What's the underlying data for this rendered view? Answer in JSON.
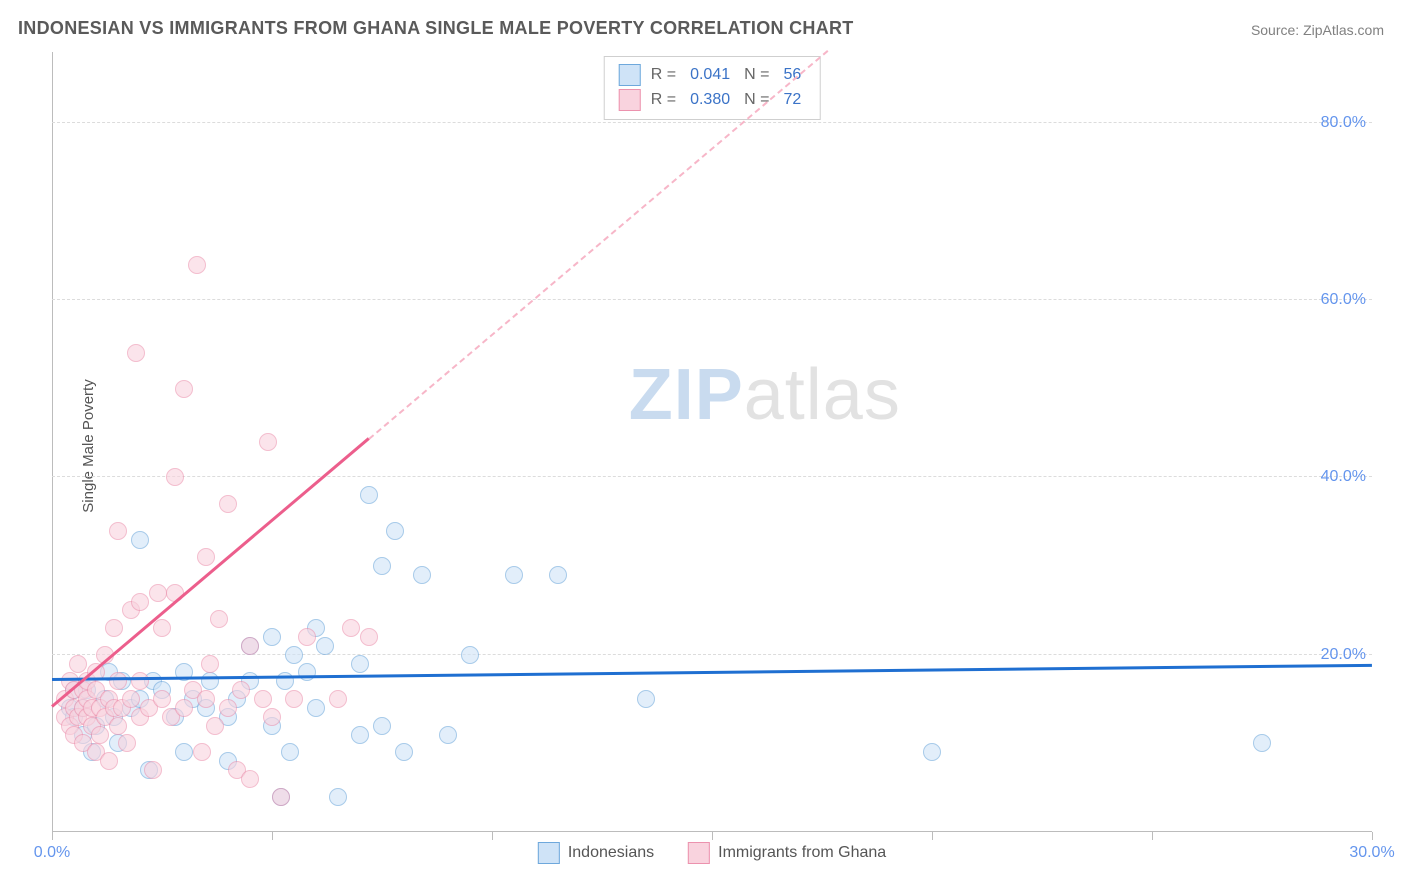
{
  "title": "INDONESIAN VS IMMIGRANTS FROM GHANA SINGLE MALE POVERTY CORRELATION CHART",
  "source": "Source: ZipAtlas.com",
  "ylabel": "Single Male Poverty",
  "watermark": {
    "zip": "ZIP",
    "atlas": "atlas"
  },
  "chart": {
    "type": "scatter",
    "xlim": [
      0,
      30
    ],
    "ylim": [
      0,
      88
    ],
    "xticks": [
      0,
      5,
      10,
      15,
      20,
      25,
      30
    ],
    "xlabels": {
      "0": "0.0%",
      "30": "30.0%"
    },
    "yticks": [
      20,
      40,
      60,
      80
    ],
    "background_color": "#ffffff",
    "grid_color": "#dcdcdc",
    "axis_color": "#bcbcbc",
    "tick_label_color": "#6495ed",
    "marker_radius": 9,
    "marker_stroke": 1.5,
    "series": [
      {
        "name": "Indonesians",
        "fill": "#cfe3f7",
        "stroke": "#6ea8dc",
        "fill_opacity": 0.6,
        "R": "0.041",
        "N": "56",
        "trend": {
          "y_at_x0": 17.0,
          "y_at_x30": 18.6,
          "color": "#1f6fd1"
        },
        "points": [
          [
            0.4,
            14
          ],
          [
            0.5,
            13
          ],
          [
            0.5,
            16
          ],
          [
            0.7,
            11
          ],
          [
            0.7,
            14
          ],
          [
            0.8,
            16
          ],
          [
            0.9,
            9
          ],
          [
            1.0,
            12
          ],
          [
            1.2,
            15
          ],
          [
            1.3,
            18
          ],
          [
            1.4,
            13
          ],
          [
            1.5,
            10
          ],
          [
            1.6,
            17
          ],
          [
            1.8,
            14
          ],
          [
            2.0,
            15
          ],
          [
            2.0,
            33
          ],
          [
            2.2,
            7
          ],
          [
            2.3,
            17
          ],
          [
            2.5,
            16
          ],
          [
            2.8,
            13
          ],
          [
            3.0,
            18
          ],
          [
            3.0,
            9
          ],
          [
            3.2,
            15
          ],
          [
            3.5,
            14
          ],
          [
            3.6,
            17
          ],
          [
            4.0,
            13
          ],
          [
            4.0,
            8
          ],
          [
            4.2,
            15
          ],
          [
            4.5,
            17
          ],
          [
            4.5,
            21
          ],
          [
            5.0,
            22
          ],
          [
            5.0,
            12
          ],
          [
            5.2,
            4
          ],
          [
            5.3,
            17
          ],
          [
            5.4,
            9
          ],
          [
            5.5,
            20
          ],
          [
            5.8,
            18
          ],
          [
            6.0,
            23
          ],
          [
            6.0,
            14
          ],
          [
            6.2,
            21
          ],
          [
            6.5,
            4
          ],
          [
            7.0,
            11
          ],
          [
            7.0,
            19
          ],
          [
            7.2,
            38
          ],
          [
            7.5,
            12
          ],
          [
            7.5,
            30
          ],
          [
            7.8,
            34
          ],
          [
            8.0,
            9
          ],
          [
            8.4,
            29
          ],
          [
            9.0,
            11
          ],
          [
            9.5,
            20
          ],
          [
            10.5,
            29
          ],
          [
            11.5,
            29
          ],
          [
            13.5,
            15
          ],
          [
            20.0,
            9
          ],
          [
            27.5,
            10
          ]
        ]
      },
      {
        "name": "Immigrants from Ghana",
        "fill": "#f9d3de",
        "stroke": "#ec92ae",
        "fill_opacity": 0.6,
        "R": "0.380",
        "N": "72",
        "trend": {
          "y_at_x0": 14.0,
          "y_at_x30": 140.0,
          "color": "#ec5e8c",
          "dash_color": "#f7b6c8",
          "solid_until_x": 7.2
        },
        "points": [
          [
            0.3,
            15
          ],
          [
            0.3,
            13
          ],
          [
            0.4,
            17
          ],
          [
            0.4,
            12
          ],
          [
            0.5,
            14
          ],
          [
            0.5,
            16
          ],
          [
            0.5,
            11
          ],
          [
            0.6,
            13
          ],
          [
            0.6,
            19
          ],
          [
            0.7,
            14
          ],
          [
            0.7,
            16
          ],
          [
            0.7,
            10
          ],
          [
            0.8,
            15
          ],
          [
            0.8,
            13
          ],
          [
            0.8,
            17
          ],
          [
            0.9,
            12
          ],
          [
            0.9,
            14
          ],
          [
            1.0,
            9
          ],
          [
            1.0,
            16
          ],
          [
            1.0,
            18
          ],
          [
            1.1,
            14
          ],
          [
            1.1,
            11
          ],
          [
            1.2,
            13
          ],
          [
            1.2,
            20
          ],
          [
            1.3,
            8
          ],
          [
            1.3,
            15
          ],
          [
            1.4,
            14
          ],
          [
            1.4,
            23
          ],
          [
            1.5,
            12
          ],
          [
            1.5,
            17
          ],
          [
            1.5,
            34
          ],
          [
            1.6,
            14
          ],
          [
            1.7,
            10
          ],
          [
            1.8,
            15
          ],
          [
            1.8,
            25
          ],
          [
            1.9,
            54
          ],
          [
            2.0,
            13
          ],
          [
            2.0,
            17
          ],
          [
            2.0,
            26
          ],
          [
            2.2,
            14
          ],
          [
            2.3,
            7
          ],
          [
            2.4,
            27
          ],
          [
            2.5,
            15
          ],
          [
            2.5,
            23
          ],
          [
            2.7,
            13
          ],
          [
            2.8,
            27
          ],
          [
            2.8,
            40
          ],
          [
            3.0,
            14
          ],
          [
            3.0,
            50
          ],
          [
            3.2,
            16
          ],
          [
            3.3,
            64
          ],
          [
            3.4,
            9
          ],
          [
            3.5,
            15
          ],
          [
            3.5,
            31
          ],
          [
            3.6,
            19
          ],
          [
            3.7,
            12
          ],
          [
            3.8,
            24
          ],
          [
            4.0,
            14
          ],
          [
            4.0,
            37
          ],
          [
            4.2,
            7
          ],
          [
            4.3,
            16
          ],
          [
            4.5,
            21
          ],
          [
            4.5,
            6
          ],
          [
            4.8,
            15
          ],
          [
            4.9,
            44
          ],
          [
            5.0,
            13
          ],
          [
            5.2,
            4
          ],
          [
            5.5,
            15
          ],
          [
            5.8,
            22
          ],
          [
            6.5,
            15
          ],
          [
            6.8,
            23
          ],
          [
            7.2,
            22
          ]
        ]
      }
    ],
    "stats_labels": {
      "R": "R  =",
      "N": "N  ="
    },
    "legend_labels": [
      "Indonesians",
      "Immigrants from Ghana"
    ]
  }
}
